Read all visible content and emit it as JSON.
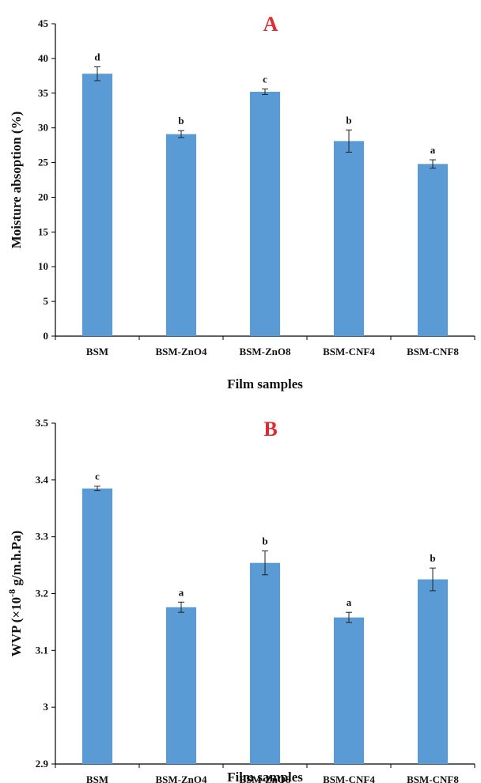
{
  "chart_data": [
    {
      "type": "bar",
      "panel_label": "A",
      "categories": [
        "BSM",
        "BSM-ZnO4",
        "BSM-ZnO8",
        "BSM-CNF4",
        "BSM-CNF8"
      ],
      "values": [
        37.8,
        29.1,
        35.2,
        28.1,
        24.8
      ],
      "errors": [
        1.0,
        0.5,
        0.4,
        1.6,
        0.6
      ],
      "significance": [
        "d",
        "b",
        "c",
        "b",
        "a"
      ],
      "xlabel": "Film samples",
      "ylabel": "Moisture absoption (%)",
      "ylim": [
        0,
        45
      ],
      "yticks": [
        "0",
        "5",
        "10",
        "15",
        "20",
        "25",
        "30",
        "35",
        "40",
        "45"
      ],
      "bar_color": "#5b9bd5",
      "panel_label_color": "#e8262b",
      "grid": false
    },
    {
      "type": "bar",
      "panel_label": "B",
      "categories": [
        "BSM",
        "BSM-ZnO4",
        "BSM-ZnO8",
        "BSM-CNF4",
        "BSM-CNF8"
      ],
      "values": [
        3.385,
        3.176,
        3.254,
        3.158,
        3.225
      ],
      "errors": [
        0.004,
        0.009,
        0.021,
        0.009,
        0.02
      ],
      "significance": [
        "c",
        "a",
        "b",
        "a",
        "b"
      ],
      "xlabel": "Film samples",
      "ylabel_main": "WVP (×10",
      "ylabel_sup": "-8",
      "ylabel_tail": " g/m.h.Pa)",
      "ylim": [
        2.9,
        3.5
      ],
      "yticks": [
        "2.9",
        "3",
        "3.1",
        "3.2",
        "3.3",
        "3.4",
        "3.5"
      ],
      "bar_color": "#5b9bd5",
      "panel_label_color": "#e8262b",
      "grid": false
    }
  ]
}
